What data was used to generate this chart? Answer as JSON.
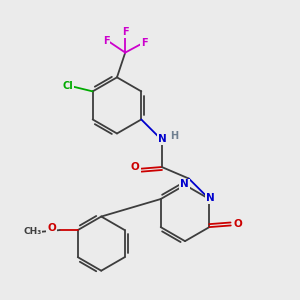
{
  "background_color": "#ebebeb",
  "atom_colors": {
    "C": "#3d3d3d",
    "N": "#0000cc",
    "O": "#cc0000",
    "F": "#cc00cc",
    "Cl": "#00aa00",
    "H": "#708090"
  }
}
